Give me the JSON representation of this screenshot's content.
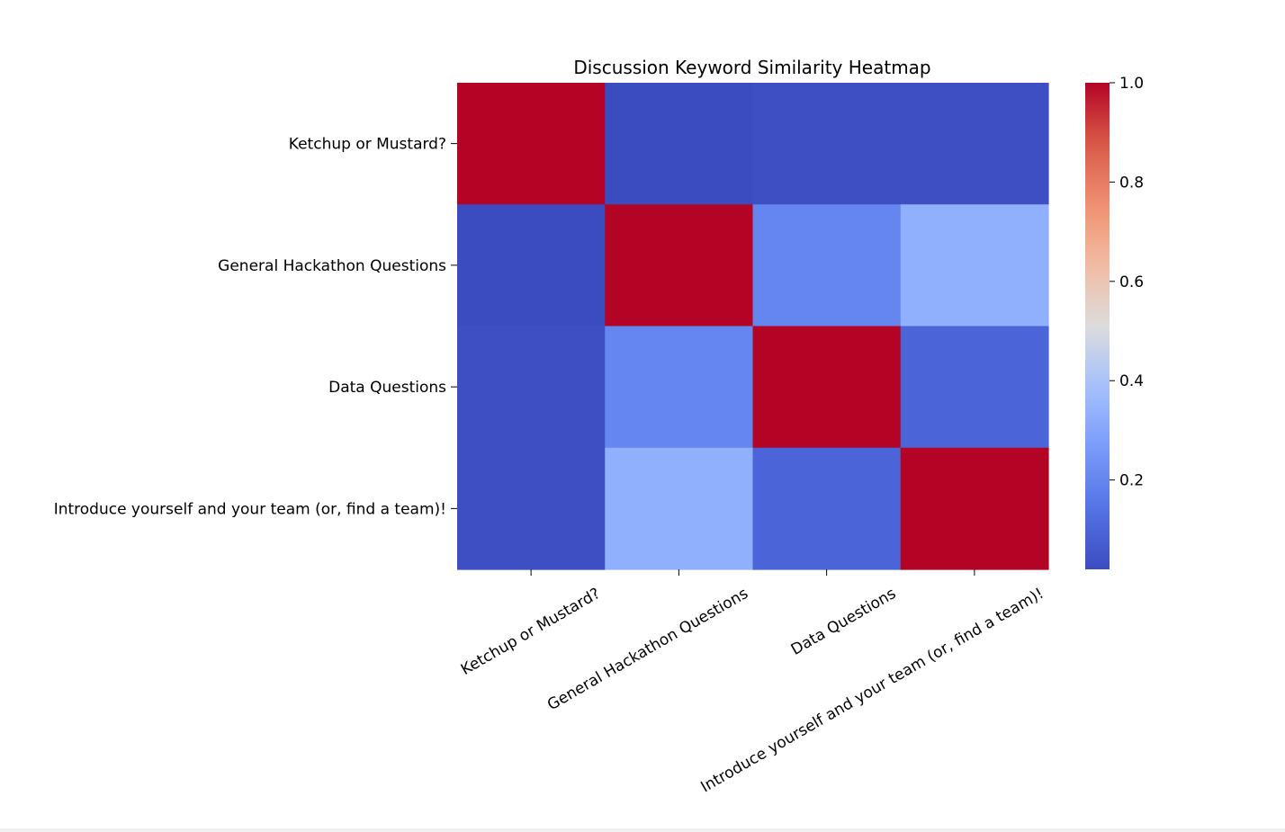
{
  "chart_data": {
    "type": "heatmap",
    "title": "Discussion Keyword Similarity Heatmap",
    "xlabel": "",
    "ylabel": "",
    "rows": [
      "Ketchup or Mustard?",
      "General Hackathon Questions",
      "Data Questions",
      "Introduce yourself and your team (or, find a team)!"
    ],
    "columns": [
      "Ketchup or Mustard?",
      "General Hackathon Questions",
      "Data Questions",
      "Introduce yourself and your team (or, find a team)!"
    ],
    "values": [
      [
        1.0,
        0.02,
        0.03,
        0.03
      ],
      [
        0.02,
        1.0,
        0.2,
        0.33
      ],
      [
        0.03,
        0.2,
        1.0,
        0.1
      ],
      [
        0.03,
        0.33,
        0.1,
        1.0
      ]
    ],
    "colormap": "coolwarm",
    "vmin": 0.02,
    "vmax": 1.0,
    "colorbar_ticks": [
      0.2,
      0.4,
      0.6,
      0.8,
      1.0
    ],
    "colorbar_tick_labels": [
      "0.2",
      "0.4",
      "0.6",
      "0.8",
      "1.0"
    ],
    "x_tick_rotation": 30
  }
}
